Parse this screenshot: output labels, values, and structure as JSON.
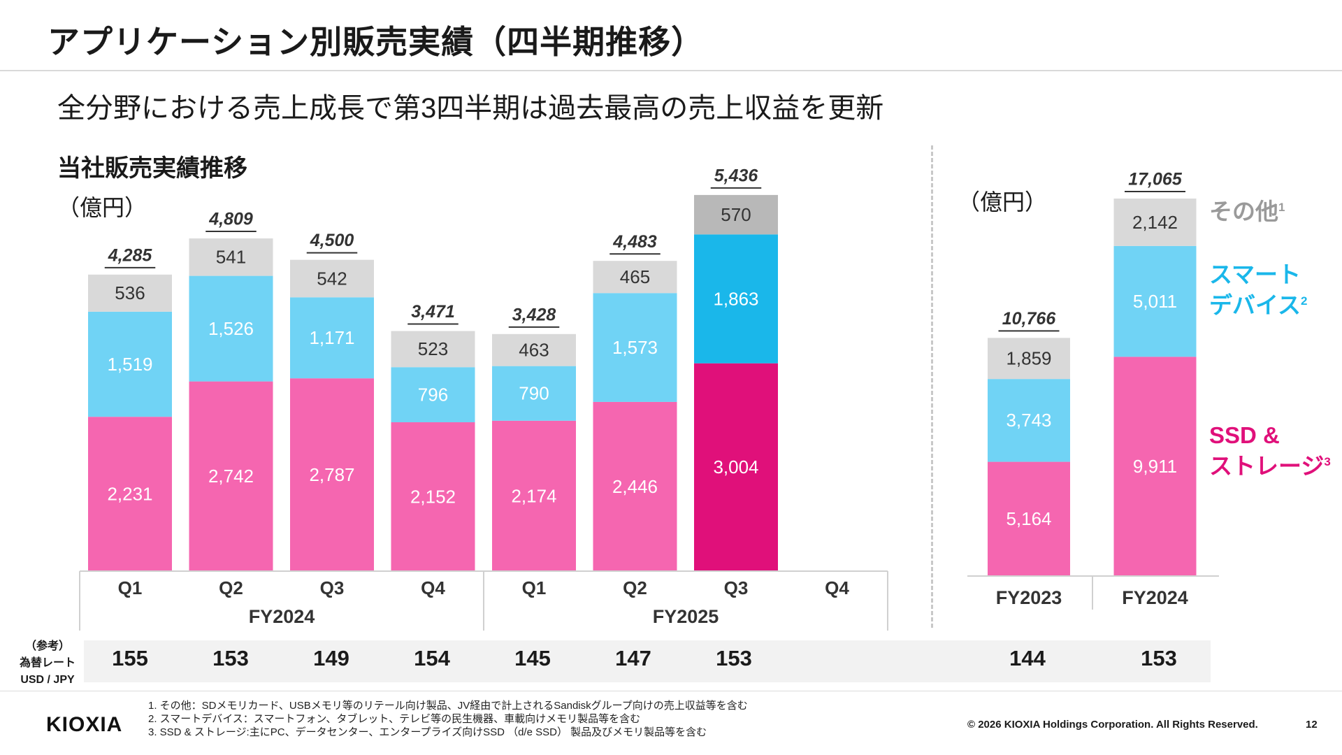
{
  "title": "アプリケーション別販売実績（四半期推移）",
  "headline": "全分野における売上成長で第3四半期は過去最高の売上収益を更新",
  "section_title": "当社販売実績推移",
  "unit_left": "（億円）",
  "unit_right": "（億円）",
  "legend": {
    "other": "その他",
    "other_note": "1",
    "smart_line1": "スマート",
    "smart_line2": "デバイス",
    "smart_note": "2",
    "ssd_line1": "SSD &",
    "ssd_line2": "ストレージ",
    "ssd_note": "3"
  },
  "colors": {
    "ssd": "#f566b0",
    "ssd_highlight": "#e0107a",
    "smart": "#70d3f5",
    "smart_highlight": "#1ab7ea",
    "other": "#d9d9d9",
    "other_highlight": "#b8b8b8",
    "axis": "#d0d0d0"
  },
  "chart_data": [
    {
      "type": "bar",
      "stacked": true,
      "unit": "億円",
      "categories": [
        "Q1",
        "Q2",
        "Q3",
        "Q4",
        "Q1",
        "Q2",
        "Q3",
        "Q4"
      ],
      "groups": [
        {
          "label": "FY2024",
          "categories": [
            "Q1",
            "Q2",
            "Q3",
            "Q4"
          ]
        },
        {
          "label": "FY2025",
          "categories": [
            "Q1",
            "Q2",
            "Q3",
            "Q4"
          ]
        }
      ],
      "series": [
        {
          "name": "SSD & ストレージ",
          "values": [
            2231,
            2742,
            2787,
            2152,
            2174,
            2446,
            3004,
            null
          ],
          "labels": [
            "2,231",
            "2,742",
            "2,787",
            "2,152",
            "2,174",
            "2,446",
            "3,004",
            ""
          ]
        },
        {
          "name": "スマートデバイス",
          "values": [
            1519,
            1526,
            1171,
            796,
            790,
            1573,
            1863,
            null
          ],
          "labels": [
            "1,519",
            "1,526",
            "1,171",
            "796",
            "790",
            "1,573",
            "1,863",
            ""
          ]
        },
        {
          "name": "その他",
          "values": [
            536,
            541,
            542,
            523,
            463,
            465,
            570,
            null
          ],
          "labels": [
            "536",
            "541",
            "542",
            "523",
            "463",
            "465",
            "570",
            ""
          ]
        }
      ],
      "totals": [
        4285,
        4809,
        4500,
        3471,
        3428,
        4483,
        5436,
        null
      ],
      "total_labels": [
        "4,285",
        "4,809",
        "4,500",
        "3,471",
        "3,428",
        "4,483",
        "5,436",
        ""
      ],
      "highlight_index": 6,
      "ylim": [
        0,
        5436
      ]
    },
    {
      "type": "bar",
      "stacked": true,
      "unit": "億円",
      "categories": [
        "FY2023",
        "FY2024"
      ],
      "series": [
        {
          "name": "SSD & ストレージ",
          "values": [
            5164,
            9911
          ],
          "labels": [
            "5,164",
            "9,911"
          ]
        },
        {
          "name": "スマートデバイス",
          "values": [
            3743,
            5011
          ],
          "labels": [
            "3,743",
            "5,011"
          ]
        },
        {
          "name": "その他",
          "values": [
            1859,
            2142
          ],
          "labels": [
            "1,859",
            "2,142"
          ]
        }
      ],
      "totals": [
        10766,
        17065
      ],
      "total_labels": [
        "10,766",
        "17,065"
      ],
      "ylim": [
        0,
        17065
      ]
    }
  ],
  "fx": {
    "label_line1": "（参考）",
    "label_line2": "為替レート",
    "label_line3": "USD / JPY",
    "quarterly": [
      "155",
      "153",
      "149",
      "154",
      "145",
      "147",
      "153"
    ],
    "annual": [
      "144",
      "153"
    ]
  },
  "notes": [
    "1. その他：SDメモリカード、USBメモリ等のリテール向け製品、JV経由で計上されるSandiskグループ向けの売上収益等を含む",
    "2. スマートデバイス：スマートフォン、タブレット、テレビ等の民生機器、車載向けメモリ製品等を含む",
    "3. SSD & ストレージ:主にPC、データセンター、エンタープライズ向けSSD （d/e SSD） 製品及びメモリ製品等を含む"
  ],
  "logo": "KIOXIA",
  "copyright": "© 2026 KIOXIA Holdings Corporation. All Rights Reserved.",
  "page_number": "12"
}
